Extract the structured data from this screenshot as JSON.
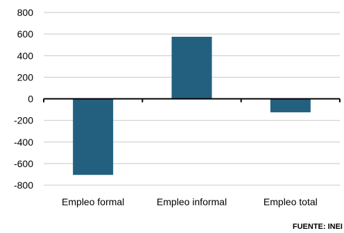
{
  "chart_data": {
    "type": "bar",
    "categories": [
      "Empleo formal",
      "Empleo informal",
      "Empleo total"
    ],
    "values": [
      -705,
      575,
      -125
    ],
    "ylim": [
      -800,
      800
    ],
    "yticks": [
      800,
      600,
      400,
      200,
      0,
      -200,
      -400,
      -600,
      -800
    ],
    "ytick_labels": [
      "800",
      "600",
      "400",
      "200",
      "0",
      "-200",
      "-400",
      "-600",
      "-800"
    ],
    "grid": true,
    "bar_color": "#23607f",
    "grid_color": "#c8c8c8",
    "source": "FUENTE: INEI"
  }
}
